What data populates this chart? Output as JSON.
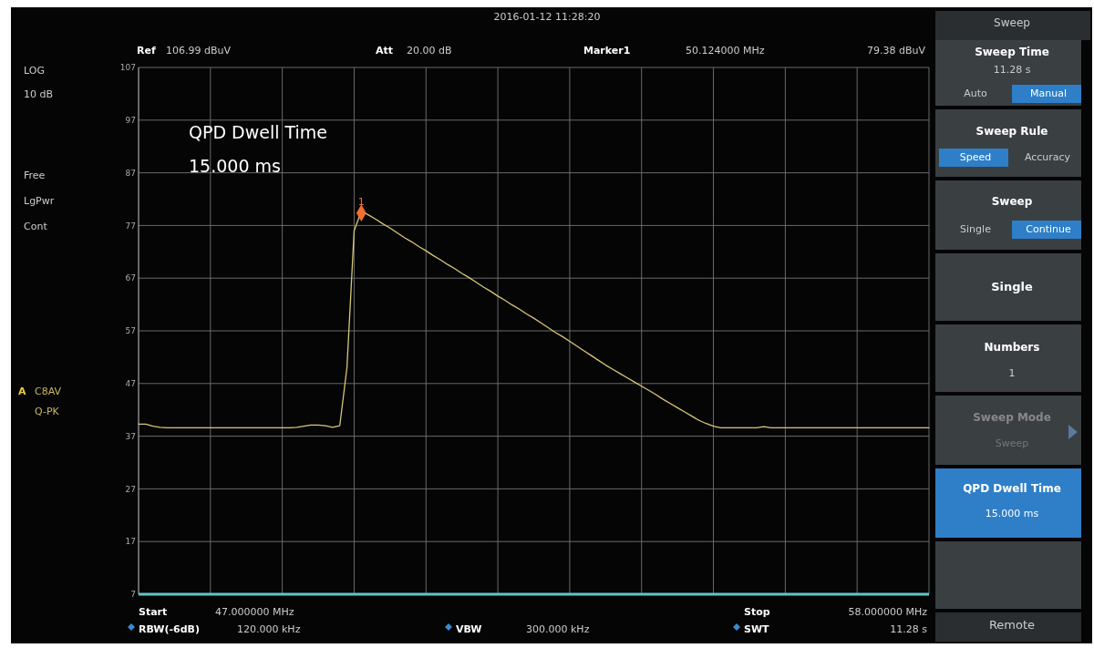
{
  "chart_data": {
    "type": "line",
    "ylim": [
      7,
      107
    ],
    "yticks": [
      7,
      17,
      27,
      37,
      47,
      57,
      67,
      77,
      87,
      97,
      107
    ],
    "categories": [
      null,
      null,
      null,
      null,
      null,
      null,
      null,
      null,
      null,
      null,
      null,
      null,
      null,
      null,
      null,
      null,
      null,
      null,
      null,
      null,
      null,
      null,
      null,
      null,
      null,
      null,
      null,
      null,
      null,
      null,
      null,
      null,
      null,
      null,
      null,
      null,
      null,
      null,
      null,
      null,
      null,
      null,
      null,
      null,
      null,
      null,
      null,
      null,
      null,
      null,
      null,
      null,
      null,
      null,
      null,
      null,
      null,
      null,
      null,
      null,
      null,
      null,
      null,
      null,
      null,
      null,
      null,
      null,
      null,
      null,
      null,
      null,
      null,
      null,
      null,
      null,
      null,
      null,
      null,
      null,
      null,
      null,
      null,
      null,
      null,
      null,
      null,
      null,
      null,
      null,
      null,
      null,
      null,
      null,
      null,
      null,
      null,
      null,
      null,
      null,
      null,
      null,
      null,
      null,
      null,
      null,
      null,
      null,
      null,
      null,
      null
    ],
    "grid": true,
    "legend": false,
    "series": [
      {
        "color": "#d8c878",
        "marker": "none",
        "values": [
          39.3,
          39.3,
          38.9,
          38.7,
          38.6,
          38.6,
          38.6,
          38.6,
          38.6,
          38.6,
          38.6,
          38.6,
          38.6,
          38.6,
          38.6,
          38.6,
          38.6,
          38.6,
          38.6,
          38.6,
          38.6,
          38.6,
          38.7,
          38.9,
          39.1,
          39.1,
          39.0,
          38.7,
          39.0,
          50,
          76,
          79.7,
          79.0,
          78.2,
          77.3,
          76.5,
          75.6,
          74.7,
          73.9,
          73.0,
          72.2,
          71.3,
          70.5,
          69.6,
          68.8,
          67.9,
          67.1,
          66.2,
          65.3,
          64.5,
          63.6,
          62.8,
          61.9,
          61.1,
          60.2,
          59.4,
          58.5,
          57.6,
          56.7,
          55.9,
          55.0,
          54.1,
          53.2,
          52.3,
          51.4,
          50.5,
          49.7,
          48.9,
          48.1,
          47.3,
          46.5,
          45.7,
          44.9,
          44.0,
          43.2,
          42.4,
          41.6,
          40.8,
          40.0,
          39.4,
          38.9,
          38.6,
          38.6,
          38.6,
          38.6,
          38.6,
          38.6,
          38.8,
          38.6,
          38.6,
          38.6,
          38.6,
          38.6,
          38.6,
          38.6,
          38.6,
          38.6,
          38.6,
          38.6,
          38.6,
          38.6,
          38.6,
          38.6,
          38.6,
          38.6,
          38.6,
          38.6,
          38.6,
          38.6,
          38.6,
          38.6
        ]
      },
      {
        "type": "scatter",
        "name": "1",
        "color": "#f07030",
        "marker": "diamond",
        "values": [
          null,
          null,
          null,
          null,
          null,
          null,
          null,
          null,
          null,
          null,
          null,
          null,
          null,
          null,
          null,
          null,
          null,
          null,
          null,
          null,
          null,
          null,
          null,
          null,
          null,
          null,
          null,
          null,
          null,
          null,
          null,
          79.38,
          null,
          null,
          null,
          null,
          null,
          null,
          null,
          null,
          null,
          null,
          null,
          null,
          null,
          null,
          null,
          null,
          null,
          null,
          null,
          null,
          null,
          null,
          null,
          null,
          null,
          null,
          null,
          null,
          null,
          null,
          null,
          null,
          null,
          null,
          null,
          null,
          null,
          null,
          null,
          null,
          null,
          null,
          null,
          null,
          null,
          null,
          null,
          null,
          null,
          null,
          null,
          null,
          null,
          null,
          null,
          null,
          null,
          null,
          null,
          null,
          null,
          null,
          null,
          null,
          null,
          null,
          null,
          null,
          null,
          null,
          null,
          null,
          null,
          null,
          null,
          null,
          null,
          null,
          null
        ]
      }
    ],
    "annotations": [
      "2016-01-12  11:28:20",
      "Sweep",
      "Ref",
      "106.99 dBuV",
      "Att",
      "20.00 dB",
      "Marker1",
      "50.124000 MHz",
      "79.38 dBuV",
      "LOG",
      "10 dB",
      "Free",
      "LgPwr",
      "Cont",
      "A",
      "C8AV",
      "Q-PK",
      "QPD Dwell Time",
      "15.000 ms",
      "Start",
      "47.000000 MHz",
      "RBW(-6dB)",
      "120.000 kHz",
      "VBW",
      "300.000 kHz",
      "Stop",
      "58.000000 MHz",
      "SWT",
      "11.28 s",
      "Sweep Time",
      "11.28 s",
      "Auto",
      "Manual",
      "Sweep Rule",
      "Speed",
      "Accuracy",
      "Sweep",
      "Single",
      "Continue",
      "Single",
      "Numbers",
      "1",
      "Sweep Mode",
      "Sweep",
      "QPD Dwell Time",
      "15.000 ms",
      "Remote"
    ]
  }
}
